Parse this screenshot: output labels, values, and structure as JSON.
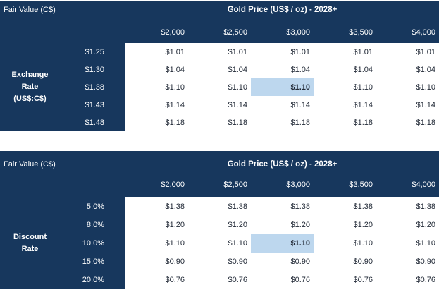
{
  "colors": {
    "header_bg": "#17375D",
    "header_text": "#FFFFFF",
    "highlight_bg": "#BDD7EE",
    "cell_text": "#232B38"
  },
  "chart_data": [
    {
      "type": "table",
      "corner_label": "Fair Value (C$)",
      "title": "Gold Price (US$ / oz) - 2028+",
      "row_axis_label": "Exchange\nRate\n(US$:C$)",
      "col_headers": [
        "$2,000",
        "$2,500",
        "$3,000",
        "$3,500",
        "$4,000"
      ],
      "row_headers": [
        "$1.25",
        "$1.30",
        "$1.38",
        "$1.43",
        "$1.48"
      ],
      "rows": [
        [
          "$1.01",
          "$1.01",
          "$1.01",
          "$1.01",
          "$1.01"
        ],
        [
          "$1.04",
          "$1.04",
          "$1.04",
          "$1.04",
          "$1.04"
        ],
        [
          "$1.10",
          "$1.10",
          "$1.10",
          "$1.10",
          "$1.10"
        ],
        [
          "$1.14",
          "$1.14",
          "$1.14",
          "$1.14",
          "$1.14"
        ],
        [
          "$1.18",
          "$1.18",
          "$1.18",
          "$1.18",
          "$1.18"
        ]
      ],
      "highlight_cell": {
        "row": 2,
        "col": 2,
        "row_header": "$1.38",
        "col_header": "$3,000",
        "value": "$1.10"
      }
    },
    {
      "type": "table",
      "corner_label": "Fair Value (C$)",
      "title": "Gold Price (US$ / oz) - 2028+",
      "row_axis_label": "Discount\nRate",
      "col_headers": [
        "$2,000",
        "$2,500",
        "$3,000",
        "$3,500",
        "$4,000"
      ],
      "row_headers": [
        "5.0%",
        "8.0%",
        "10.0%",
        "15.0%",
        "20.0%"
      ],
      "rows": [
        [
          "$1.38",
          "$1.38",
          "$1.38",
          "$1.38",
          "$1.38"
        ],
        [
          "$1.20",
          "$1.20",
          "$1.20",
          "$1.20",
          "$1.20"
        ],
        [
          "$1.10",
          "$1.10",
          "$1.10",
          "$1.10",
          "$1.10"
        ],
        [
          "$0.90",
          "$0.90",
          "$0.90",
          "$0.90",
          "$0.90"
        ],
        [
          "$0.76",
          "$0.76",
          "$0.76",
          "$0.76",
          "$0.76"
        ]
      ],
      "highlight_cell": {
        "row": 2,
        "col": 2,
        "row_header": "10.0%",
        "col_header": "$3,000",
        "value": "$1.10"
      }
    }
  ]
}
